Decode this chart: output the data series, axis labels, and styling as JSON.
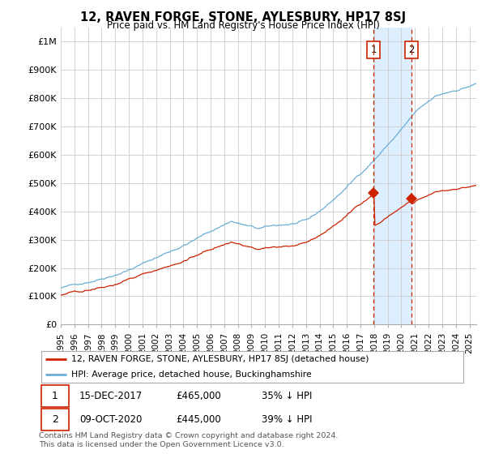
{
  "title": "12, RAVEN FORGE, STONE, AYLESBURY, HP17 8SJ",
  "subtitle": "Price paid vs. HM Land Registry's House Price Index (HPI)",
  "ylabel_ticks": [
    "£0",
    "£100K",
    "£200K",
    "£300K",
    "£400K",
    "£500K",
    "£600K",
    "£700K",
    "£800K",
    "£900K",
    "£1M"
  ],
  "ytick_values": [
    0,
    100000,
    200000,
    300000,
    400000,
    500000,
    600000,
    700000,
    800000,
    900000,
    1000000
  ],
  "ylim": [
    0,
    1050000
  ],
  "xlim_start": 1995.0,
  "xlim_end": 2025.5,
  "hpi_color": "#6baed6",
  "price_color": "#cc2200",
  "transaction1_date": 2017.958,
  "transaction1_price": 465000,
  "transaction2_date": 2020.75,
  "transaction2_price": 445000,
  "vline_color": "#cc2200",
  "legend_label_red": "12, RAVEN FORGE, STONE, AYLESBURY, HP17 8SJ (detached house)",
  "legend_label_blue": "HPI: Average price, detached house, Buckinghamshire",
  "table_rows": [
    [
      "1",
      "15-DEC-2017",
      "£465,000",
      "35% ↓ HPI"
    ],
    [
      "2",
      "09-OCT-2020",
      "£445,000",
      "39% ↓ HPI"
    ]
  ],
  "footer": "Contains HM Land Registry data © Crown copyright and database right 2024.\nThis data is licensed under the Open Government Licence v3.0.",
  "background_color": "#ffffff",
  "grid_color": "#cccccc",
  "shade_color": "#ddeeff"
}
